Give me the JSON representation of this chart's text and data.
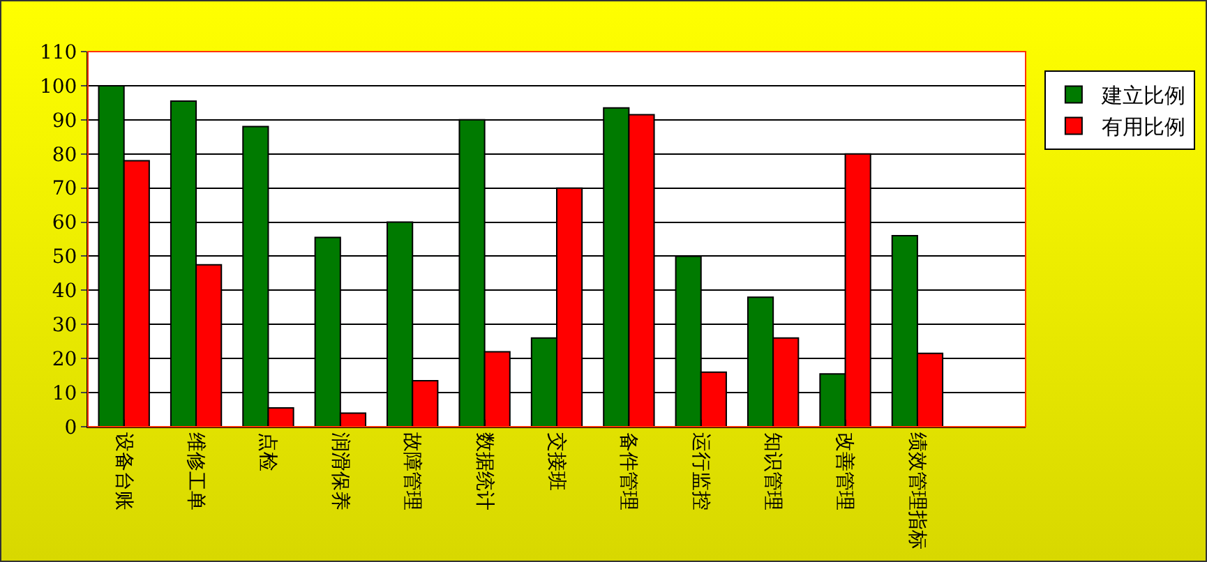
{
  "chart_data": {
    "type": "bar",
    "categories": [
      "设备台账",
      "维修工单",
      "点检",
      "润滑保养",
      "故障管理",
      "数据统计",
      "交接班",
      "备件管理",
      "运行监控",
      "知识管理",
      "改善管理",
      "绩效管理指标",
      null
    ],
    "series": [
      {
        "name": "建立比例",
        "color": "#007a00",
        "values": [
          100,
          95.5,
          88,
          55.5,
          60,
          90,
          26,
          93.5,
          50,
          38,
          15.5,
          56,
          null
        ]
      },
      {
        "name": "有用比例",
        "color": "#ff0000",
        "values": [
          78,
          47.5,
          5.5,
          4,
          13.5,
          22,
          70,
          91.5,
          16,
          26,
          80,
          21.5,
          null
        ]
      }
    ],
    "ylim": [
      0,
      110
    ],
    "yticks": [
      0,
      10,
      20,
      30,
      40,
      50,
      60,
      70,
      80,
      90,
      100,
      110
    ],
    "grid": "y",
    "legend": "right"
  }
}
